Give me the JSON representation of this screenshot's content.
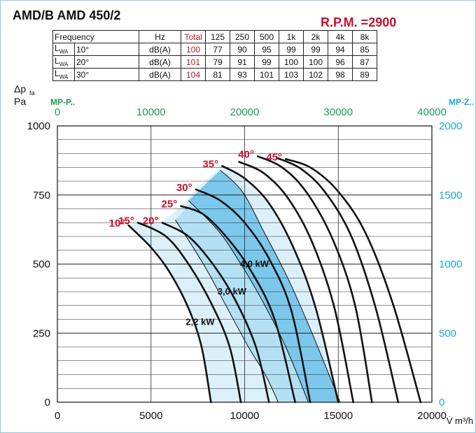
{
  "header": {
    "title": "AMD/B AMD 450/2",
    "rpm": "R.P.M. =2900"
  },
  "noise_table": {
    "header": [
      "Frequency",
      "Hz",
      "Total",
      "125",
      "250",
      "500",
      "1k",
      "2k",
      "4k",
      "8k"
    ],
    "rows": [
      {
        "label": "L",
        "sub": "WA",
        "angle": "10°",
        "unit": "dB(A)",
        "total": "100",
        "values": [
          "77",
          "90",
          "95",
          "99",
          "99",
          "94",
          "85"
        ]
      },
      {
        "label": "L",
        "sub": "WA",
        "angle": "20°",
        "unit": "dB(A)",
        "total": "101",
        "values": [
          "79",
          "91",
          "99",
          "100",
          "100",
          "96",
          "87"
        ]
      },
      {
        "label": "L",
        "sub": "WA",
        "angle": "30°",
        "unit": "dB(A)",
        "total": "104",
        "values": [
          "81",
          "93",
          "101",
          "103",
          "102",
          "98",
          "89"
        ]
      }
    ]
  },
  "chart_data": {
    "type": "line",
    "ylabel_main": "Δp",
    "ylabel_sub": "fa",
    "ylabel_unit": "Pa",
    "xlabel": "V̇ m³/h",
    "xlim": [
      0,
      20000
    ],
    "ylim": [
      0,
      1000
    ],
    "x_ticks": [
      "0",
      "5000",
      "10000",
      "15000",
      "20000"
    ],
    "y_ticks": [
      "0",
      "250",
      "500",
      "750",
      "1000"
    ],
    "top_axis": {
      "label": "MP-P..",
      "ticks": [
        "0",
        "10000",
        "20000",
        "30000",
        "40000"
      ],
      "color": "#1a9e52"
    },
    "right_axis": {
      "label": "MP-Z..",
      "ticks": [
        "0",
        "500",
        "1000",
        "1500",
        "2000"
      ],
      "color": "#1aa6e0"
    },
    "colors": {
      "curve": "#111111",
      "angle_label": "#c8102e",
      "zone_light": "#dcf0fa",
      "zone_mid": "#b4e0f4",
      "zone_dark": "#7cc8ec"
    },
    "series": [
      {
        "name": "10°",
        "points": [
          [
            3800,
            640
          ],
          [
            5000,
            560
          ],
          [
            6000,
            470
          ],
          [
            7000,
            340
          ],
          [
            7700,
            200
          ],
          [
            8200,
            0
          ]
        ]
      },
      {
        "name": "15°",
        "points": [
          [
            4300,
            650
          ],
          [
            5800,
            600
          ],
          [
            7000,
            500
          ],
          [
            8200,
            360
          ],
          [
            9200,
            200
          ],
          [
            9800,
            0
          ]
        ]
      },
      {
        "name": "20°",
        "points": [
          [
            5600,
            650
          ],
          [
            7000,
            600
          ],
          [
            8300,
            500
          ],
          [
            9500,
            370
          ],
          [
            10600,
            200
          ],
          [
            11300,
            0
          ]
        ]
      },
      {
        "name": "25°",
        "points": [
          [
            6600,
            710
          ],
          [
            7800,
            680
          ],
          [
            9000,
            600
          ],
          [
            10300,
            480
          ],
          [
            11600,
            300
          ],
          [
            12700,
            0
          ]
        ]
      },
      {
        "name": "30°",
        "points": [
          [
            7400,
            770
          ],
          [
            8700,
            730
          ],
          [
            10000,
            650
          ],
          [
            11300,
            520
          ],
          [
            12500,
            330
          ],
          [
            13500,
            0
          ]
        ]
      },
      {
        "name": "35°",
        "points": [
          [
            8800,
            855
          ],
          [
            10000,
            810
          ],
          [
            11300,
            720
          ],
          [
            12600,
            560
          ],
          [
            13800,
            340
          ],
          [
            15000,
            0
          ]
        ]
      },
      {
        "name": "",
        "points": [
          [
            9700,
            870
          ],
          [
            11000,
            830
          ],
          [
            12300,
            740
          ],
          [
            13600,
            580
          ],
          [
            14800,
            340
          ],
          [
            15800,
            0
          ]
        ]
      },
      {
        "name": "40°",
        "points": [
          [
            10700,
            890
          ],
          [
            12000,
            850
          ],
          [
            13300,
            760
          ],
          [
            14700,
            590
          ],
          [
            15900,
            350
          ],
          [
            16800,
            0
          ]
        ]
      },
      {
        "name": "",
        "points": [
          [
            11700,
            885
          ],
          [
            13000,
            845
          ],
          [
            14300,
            760
          ],
          [
            15700,
            600
          ],
          [
            17000,
            340
          ],
          [
            18200,
            0
          ]
        ]
      },
      {
        "name": "45°",
        "points": [
          [
            12200,
            880
          ],
          [
            13500,
            850
          ],
          [
            14900,
            770
          ],
          [
            16400,
            620
          ],
          [
            17900,
            360
          ],
          [
            19400,
            0
          ]
        ]
      }
    ],
    "motor_lines": [
      {
        "label": "2,2 kW",
        "points": [
          [
            6300,
            660
          ],
          [
            7800,
            500
          ],
          [
            9000,
            350
          ],
          [
            10200,
            200
          ],
          [
            11100,
            100
          ],
          [
            11800,
            0
          ]
        ]
      },
      {
        "label": "3,0 kW",
        "points": [
          [
            7000,
            730
          ],
          [
            8600,
            620
          ],
          [
            9800,
            500
          ],
          [
            11000,
            360
          ],
          [
            12200,
            200
          ],
          [
            13400,
            0
          ]
        ]
      },
      {
        "label": "4,0 kW",
        "points": [
          [
            8700,
            840
          ],
          [
            9900,
            760
          ],
          [
            11000,
            620
          ],
          [
            12300,
            450
          ],
          [
            13600,
            250
          ],
          [
            15100,
            0
          ]
        ]
      }
    ]
  }
}
